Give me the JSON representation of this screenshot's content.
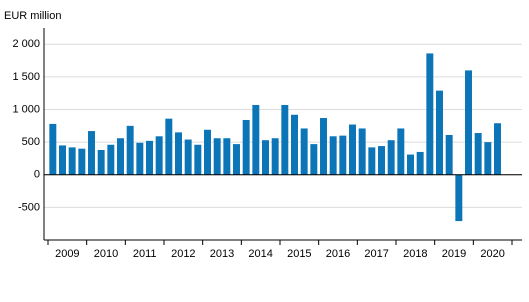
{
  "chart_data": {
    "type": "bar",
    "y_label": "EUR million",
    "categories": [
      "2009",
      null,
      null,
      null,
      "2010",
      null,
      null,
      null,
      "2011",
      null,
      null,
      null,
      "2012",
      null,
      null,
      null,
      "2013",
      null,
      null,
      null,
      "2014",
      null,
      null,
      null,
      "2015",
      null,
      null,
      null,
      "2016",
      null,
      null,
      null,
      "2017",
      null,
      null,
      null,
      "2018",
      null,
      null,
      null,
      "2019",
      null,
      null,
      null,
      "2020",
      null,
      null,
      null
    ],
    "values": [
      780,
      450,
      420,
      400,
      670,
      380,
      460,
      560,
      750,
      490,
      520,
      590,
      860,
      650,
      540,
      460,
      690,
      560,
      560,
      470,
      840,
      1070,
      530,
      560,
      1070,
      920,
      710,
      470,
      870,
      590,
      600,
      770,
      710,
      420,
      440,
      530,
      710,
      310,
      350,
      1860,
      1290,
      610,
      -710,
      1600,
      640,
      500,
      790,
      null
    ],
    "color": "#0b75b7",
    "ylim": [
      -1000,
      2250
    ],
    "yticks": [
      {
        "value": -500,
        "label": "-500"
      },
      0,
      500,
      {
        "value": 1000,
        "label": "1 000"
      },
      {
        "value": 1500,
        "label": "1 500"
      },
      {
        "value": 2000,
        "label": "2 000"
      }
    ],
    "grid": true
  }
}
